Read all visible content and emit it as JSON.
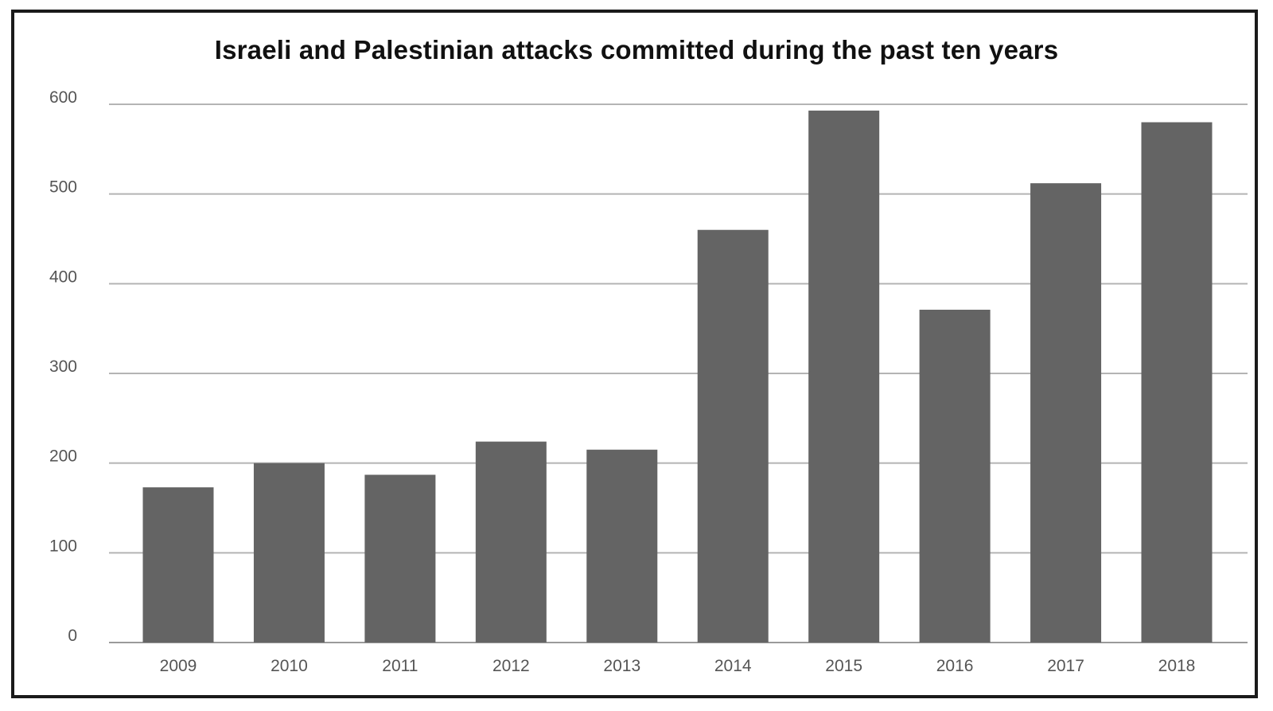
{
  "chart_data": {
    "type": "bar",
    "title": "Israeli and Palestinian attacks committed during the past ten years",
    "xlabel": "",
    "ylabel": "",
    "categories": [
      "2009",
      "2010",
      "2011",
      "2012",
      "2013",
      "2014",
      "2015",
      "2016",
      "2017",
      "2018"
    ],
    "values": [
      173,
      200,
      187,
      224,
      215,
      460,
      593,
      371,
      512,
      580
    ],
    "ylim": [
      0,
      600
    ],
    "yticks": [
      "0",
      "100",
      "200",
      "300",
      "400",
      "500",
      "600"
    ],
    "grid": true,
    "legend": "none",
    "colors": {
      "bar": "#646464",
      "grid": "#b4b4b4",
      "axis": "#9a9a9a"
    }
  }
}
